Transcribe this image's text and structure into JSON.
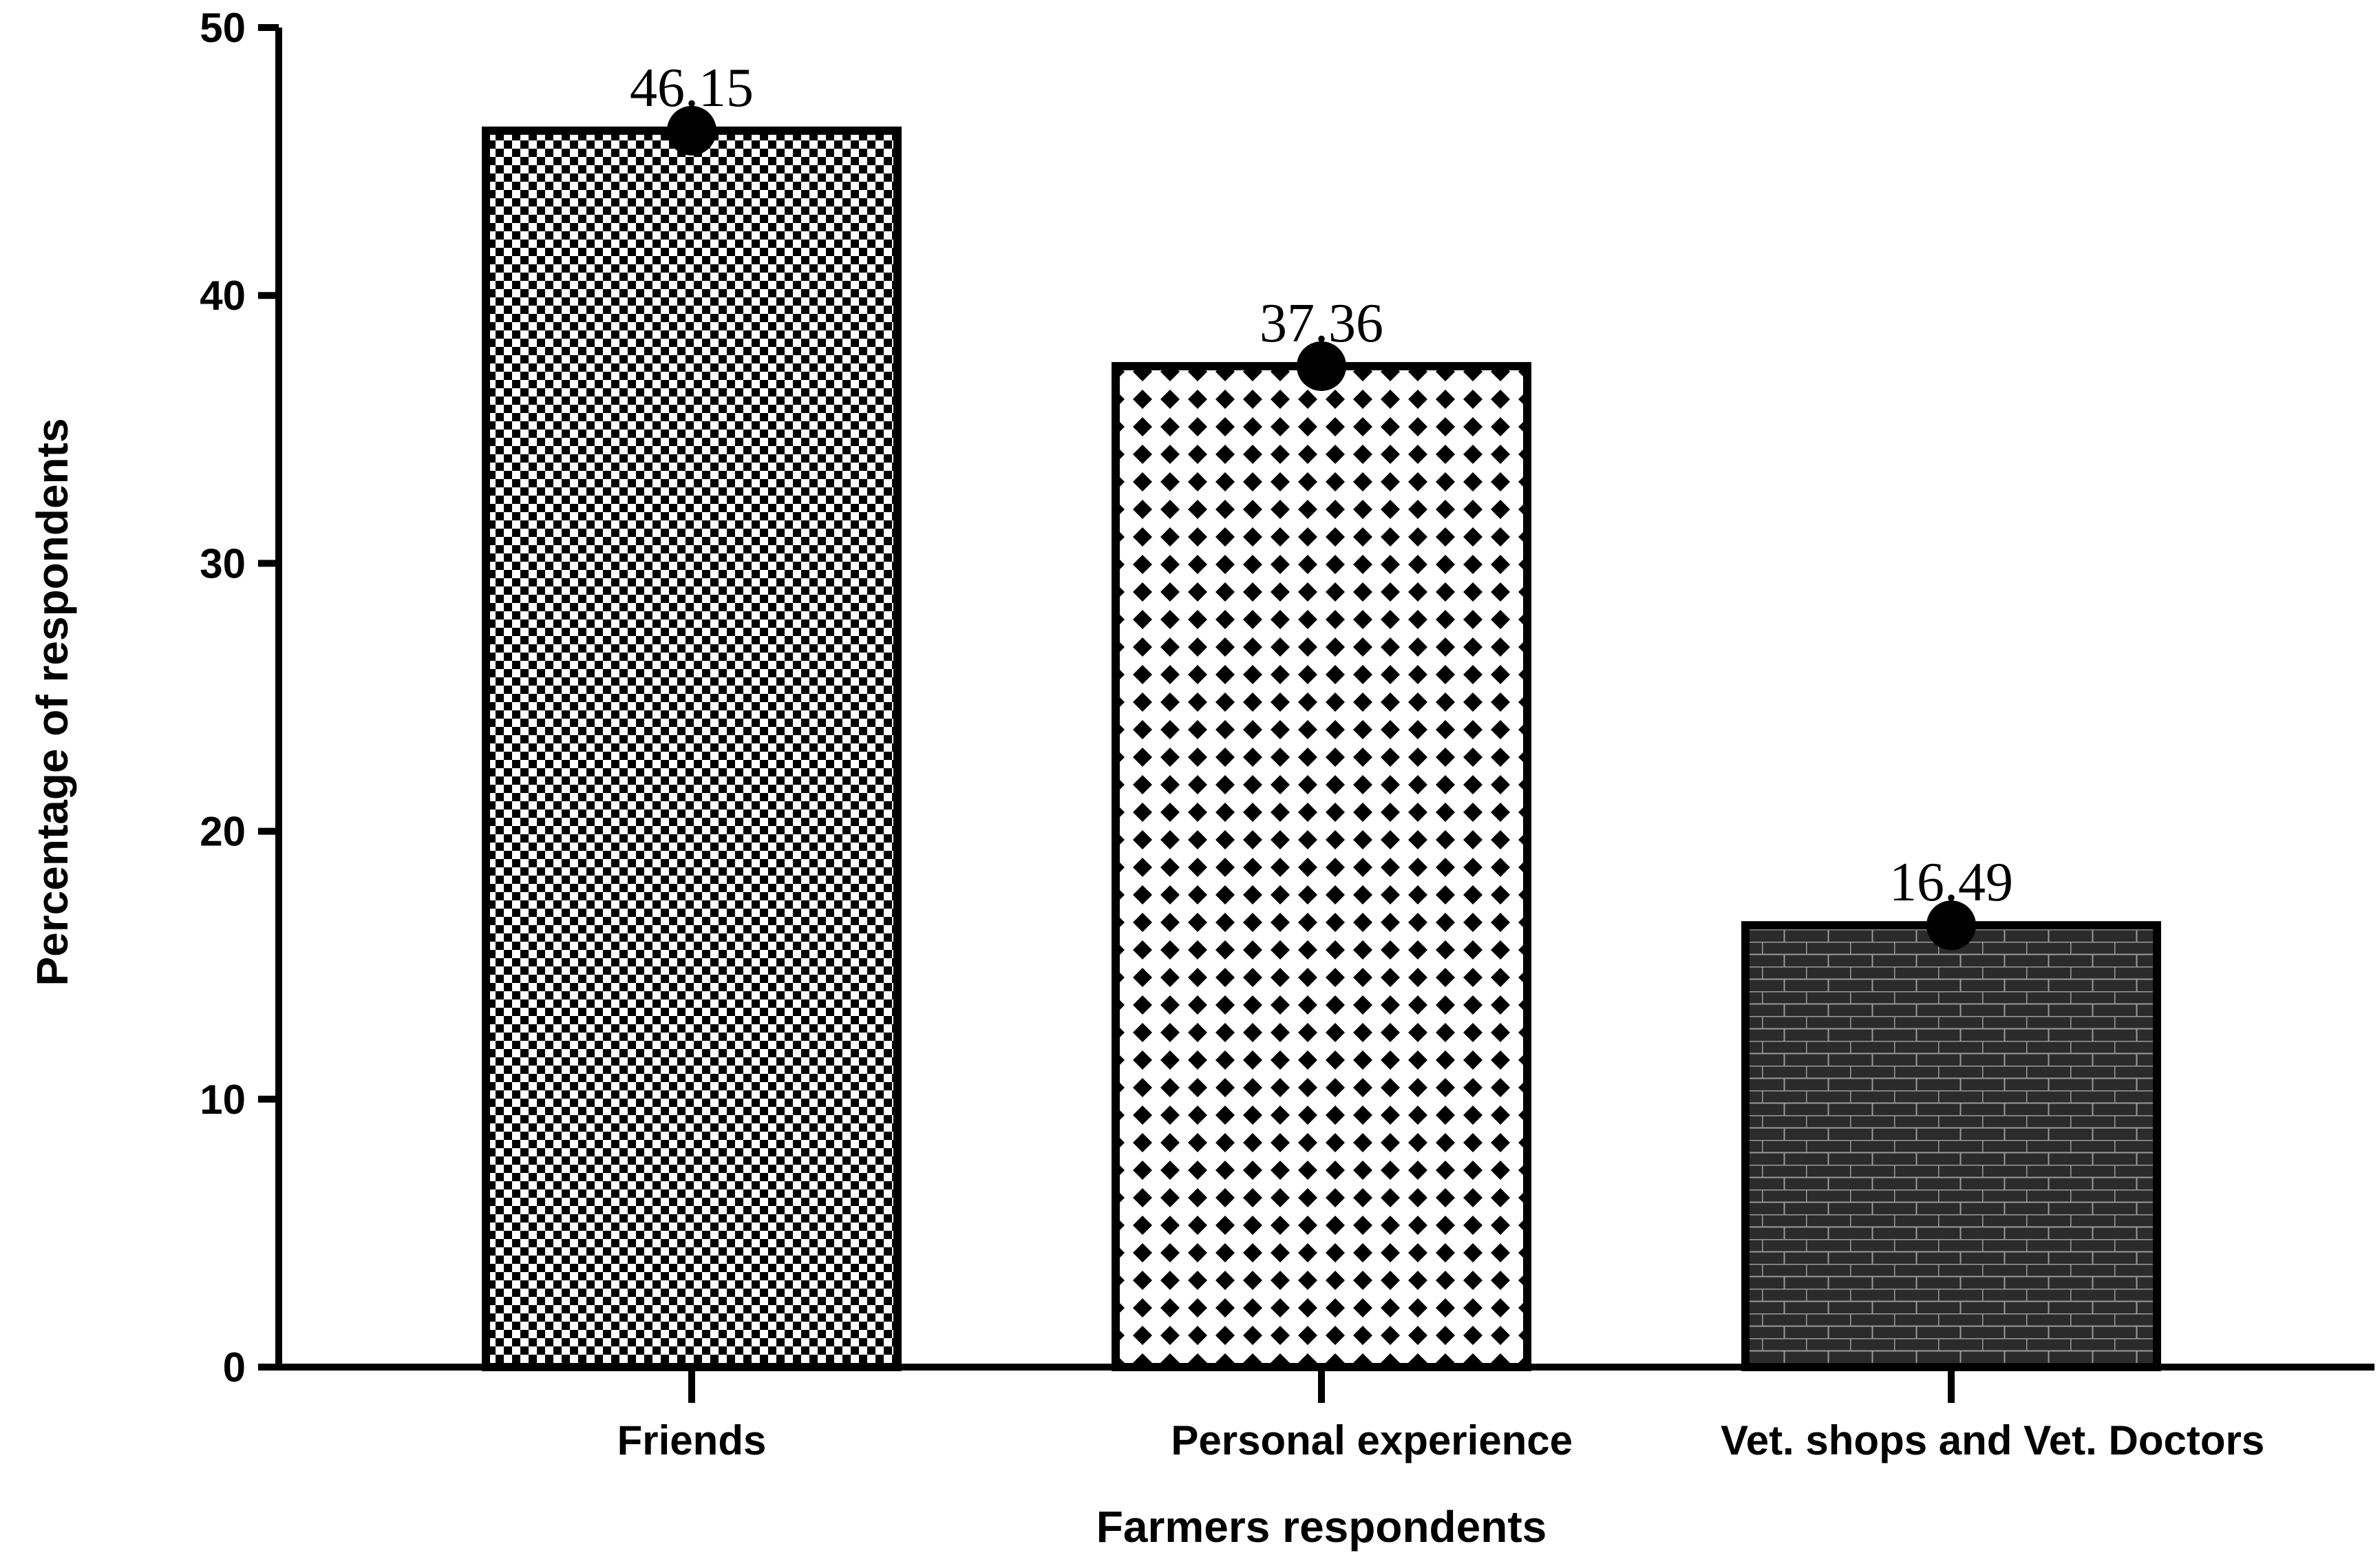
{
  "chart_data": {
    "type": "bar",
    "categories": [
      "Friends",
      "Personal experience",
      "Vet. shops and Vet. Doctors"
    ],
    "values": [
      46.15,
      37.36,
      16.49
    ],
    "data_labels": [
      "46.15",
      "37.36",
      "16.49"
    ],
    "xlabel": "Farmers respondents",
    "ylabel": "Percentage of respondents",
    "ylim": [
      0,
      50
    ],
    "yticks": [
      "0",
      "10",
      "20",
      "30",
      "40",
      "50"
    ],
    "grid": false,
    "bar_patterns": [
      "checkerboard",
      "diamond",
      "brick"
    ],
    "colors": {
      "ink": "#000000",
      "background": "#ffffff",
      "brick_fill": "#2b2b2b",
      "brick_mortar": "#9a9a9a"
    }
  }
}
